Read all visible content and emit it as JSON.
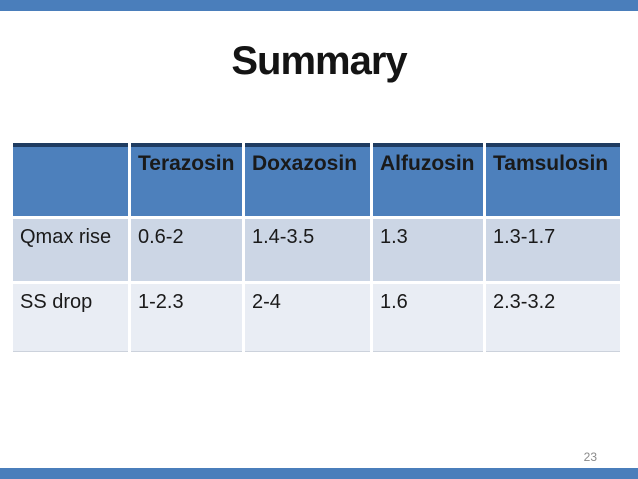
{
  "slide": {
    "title": "Summary",
    "page_number": "23"
  },
  "table": {
    "columns": [
      "",
      "Terazosin",
      "Doxazosin",
      "Alfuzosin",
      "Tamsulosin"
    ],
    "rows": [
      {
        "label": "Qmax rise",
        "values": [
          "0.6-2",
          "1.4-3.5",
          "1.3",
          "1.3-1.7"
        ]
      },
      {
        "label": "SS drop",
        "values": [
          "1-2.3",
          "2-4",
          "1.6",
          "2.3-3.2"
        ]
      }
    ]
  },
  "colors": {
    "accent_bar": "#4a7ebb",
    "table_header": "#4d80bc",
    "table_header_top_border": "#1f3c61",
    "row_band_dark": "#ccd6e5",
    "row_band_light": "#e9edf4",
    "title_text": "#141414",
    "page_number_text": "#8a8a8a",
    "background": "#ffffff"
  }
}
